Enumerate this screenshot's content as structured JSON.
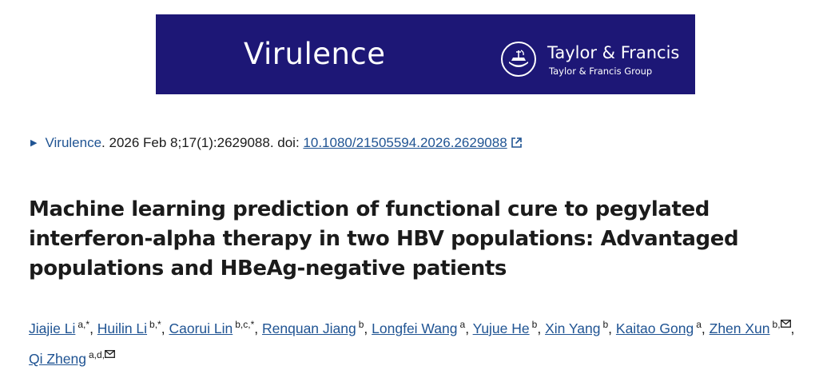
{
  "banner": {
    "journal": "Virulence",
    "publisher": "Taylor & Francis",
    "publisher_group": "Taylor & Francis Group",
    "background_color": "#1d1776"
  },
  "citation": {
    "journal_link": "Virulence",
    "text": ". 2026 Feb 8;17(1):2629088. doi: ",
    "doi": "10.1080/21505594.2026.2629088",
    "link_color": "#205493"
  },
  "article": {
    "title": "Machine learning prediction of functional cure to pegylated interferon-alpha therapy in two HBV populations: Advantaged populations and HBeAg-negative patients"
  },
  "authors": [
    {
      "name": "Jiajie Li",
      "aff": "a,*",
      "mail": false
    },
    {
      "name": "Huilin Li",
      "aff": "b,*",
      "mail": false
    },
    {
      "name": "Caorui Lin",
      "aff": "b,c,*",
      "mail": false
    },
    {
      "name": "Renquan Jiang",
      "aff": "b",
      "mail": false
    },
    {
      "name": "Longfei Wang",
      "aff": "a",
      "mail": false
    },
    {
      "name": "Yujue He",
      "aff": "b",
      "mail": false
    },
    {
      "name": "Xin Yang",
      "aff": "b",
      "mail": false
    },
    {
      "name": "Kaitao Gong",
      "aff": "a",
      "mail": false
    },
    {
      "name": "Zhen Xun",
      "aff": "b,",
      "mail": true
    },
    {
      "name": "Qi Zheng",
      "aff": "a,d,",
      "mail": true
    }
  ]
}
